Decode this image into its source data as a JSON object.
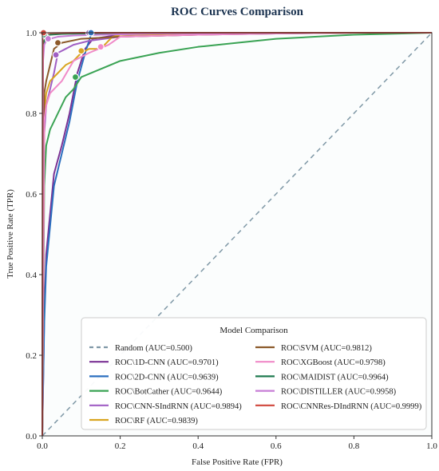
{
  "chart_data": {
    "type": "line",
    "title": "ROC Curves Comparison",
    "xlabel": "False Positive Rate (FPR)",
    "ylabel": "True Positive Rate (TPR)",
    "xlim": [
      0,
      1
    ],
    "ylim": [
      0,
      1
    ],
    "xticks": [
      "0.0",
      "0.2",
      "0.4",
      "0.6",
      "0.8",
      "1.0"
    ],
    "yticks": [
      "0.0",
      "0.2",
      "0.4",
      "0.6",
      "0.8",
      "1.0"
    ],
    "grid": false,
    "legend": {
      "title": "Model Comparison",
      "placement": "lower-right",
      "columns": 2
    },
    "series": [
      {
        "name": "Random (AUC=0.500)",
        "color": "#7f98a6",
        "dashed": true,
        "x": [
          0,
          1
        ],
        "y": [
          0,
          1
        ]
      },
      {
        "name": "ROC\\1D-CNN (AUC=0.9701)",
        "color": "#7b3294",
        "x": [
          0,
          0.005,
          0.01,
          0.02,
          0.03,
          0.05,
          0.07,
          0.09,
          0.11,
          0.13,
          0.2,
          0.4,
          0.6,
          0.8,
          1.0
        ],
        "y": [
          0,
          0.3,
          0.45,
          0.55,
          0.65,
          0.72,
          0.8,
          0.9,
          0.96,
          0.985,
          0.995,
          0.998,
          0.999,
          1.0,
          1.0
        ],
        "marker": [
          0.12,
          1.0
        ]
      },
      {
        "name": "ROC\\2D-CNN (AUC=0.9639)",
        "color": "#2b6fbf",
        "x": [
          0,
          0.005,
          0.01,
          0.02,
          0.03,
          0.05,
          0.07,
          0.09,
          0.11,
          0.125,
          0.2,
          0.4,
          0.6,
          0.8,
          1.0
        ],
        "y": [
          0,
          0.28,
          0.42,
          0.52,
          0.62,
          0.7,
          0.78,
          0.88,
          0.95,
          0.995,
          0.997,
          0.998,
          0.999,
          1.0,
          1.0
        ],
        "marker": [
          0.125,
          1.0
        ]
      },
      {
        "name": "ROC\\BotCather (AUC=0.9644)",
        "color": "#3aa354",
        "x": [
          0,
          0.005,
          0.01,
          0.02,
          0.04,
          0.06,
          0.08,
          0.1,
          0.15,
          0.2,
          0.3,
          0.4,
          0.5,
          0.6,
          0.7,
          0.8,
          1.0
        ],
        "y": [
          0,
          0.62,
          0.72,
          0.76,
          0.8,
          0.84,
          0.86,
          0.89,
          0.91,
          0.93,
          0.95,
          0.965,
          0.975,
          0.985,
          0.99,
          0.995,
          1.0
        ],
        "marker": [
          0.085,
          0.89
        ]
      },
      {
        "name": "ROC\\CNN-SIndRNN (AUC=0.9894)",
        "color": "#a05fc4",
        "x": [
          0,
          0.005,
          0.01,
          0.02,
          0.03,
          0.04,
          0.06,
          0.08,
          0.12,
          0.2,
          0.4,
          0.6,
          0.8,
          1.0
        ],
        "y": [
          0,
          0.75,
          0.82,
          0.86,
          0.9,
          0.95,
          0.96,
          0.97,
          0.98,
          0.99,
          0.995,
          0.998,
          1.0,
          1.0
        ],
        "marker": [
          0.035,
          0.945
        ]
      },
      {
        "name": "ROC\\RF (AUC=0.9839)",
        "color": "#d9a521",
        "x": [
          0,
          0.005,
          0.01,
          0.02,
          0.04,
          0.06,
          0.08,
          0.1,
          0.12,
          0.15,
          0.18,
          0.2,
          0.4,
          0.6,
          0.8,
          1.0
        ],
        "y": [
          0,
          0.8,
          0.85,
          0.88,
          0.9,
          0.92,
          0.93,
          0.95,
          0.96,
          0.96,
          0.99,
          0.995,
          0.997,
          0.999,
          1.0,
          1.0
        ],
        "marker": [
          0.1,
          0.955
        ]
      },
      {
        "name": "ROC\\SVM (AUC=0.9812)",
        "color": "#8c5a2b",
        "x": [
          0,
          0.005,
          0.01,
          0.02,
          0.03,
          0.05,
          0.1,
          0.2,
          0.4,
          0.6,
          0.8,
          1.0
        ],
        "y": [
          0,
          0.85,
          0.88,
          0.92,
          0.96,
          0.975,
          0.985,
          0.99,
          0.995,
          0.998,
          1.0,
          1.0
        ],
        "marker": [
          0.04,
          0.975
        ]
      },
      {
        "name": "ROC\\XGBoost (AUC=0.9798)",
        "color": "#f08ac8",
        "x": [
          0,
          0.005,
          0.01,
          0.02,
          0.03,
          0.05,
          0.08,
          0.12,
          0.17,
          0.2,
          0.4,
          0.6,
          0.8,
          1.0
        ],
        "y": [
          0,
          0.78,
          0.82,
          0.85,
          0.86,
          0.88,
          0.93,
          0.95,
          0.97,
          0.99,
          0.995,
          0.998,
          1.0,
          1.0
        ],
        "marker": [
          0.15,
          0.965
        ]
      },
      {
        "name": "ROC\\MAIDIST (AUC=0.9964)",
        "color": "#1f7a4f",
        "x": [
          0,
          0.002,
          0.005,
          0.01,
          0.02,
          0.05,
          0.1,
          0.2,
          0.4,
          0.6,
          0.8,
          1.0
        ],
        "y": [
          0,
          0.95,
          0.98,
          0.99,
          0.995,
          0.997,
          0.998,
          0.999,
          0.999,
          1.0,
          1.0,
          1.0
        ],
        "marker": [
          0.005,
          0.995
        ]
      },
      {
        "name": "ROC\\DISTILLER (AUC=0.9958)",
        "color": "#c77dd6",
        "x": [
          0,
          0.002,
          0.005,
          0.01,
          0.02,
          0.04,
          0.08,
          0.15,
          0.3,
          0.5,
          0.8,
          1.0
        ],
        "y": [
          0,
          0.93,
          0.97,
          0.98,
          0.985,
          0.99,
          0.993,
          0.995,
          0.998,
          0.999,
          1.0,
          1.0
        ],
        "marker": [
          0.015,
          0.985
        ]
      },
      {
        "name": "ROC\\CNNRes-DIndRNN (AUC=0.9999)",
        "color": "#d0463b",
        "x": [
          0,
          0.001,
          0.002,
          0.005,
          0.01,
          0.05,
          0.1,
          0.3,
          0.6,
          1.0
        ],
        "y": [
          0,
          0.99,
          0.995,
          0.998,
          0.999,
          0.9995,
          1.0,
          1.0,
          1.0,
          1.0
        ],
        "marker": [
          0.003,
          1.0
        ]
      }
    ]
  }
}
